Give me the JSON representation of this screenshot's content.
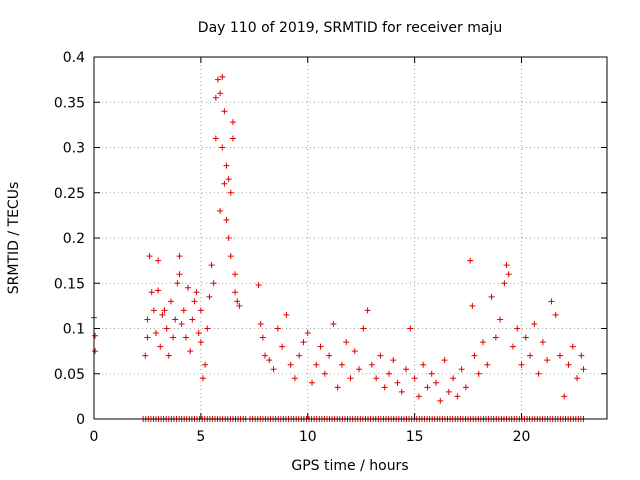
{
  "chart_data": {
    "type": "scatter",
    "title": "Day 110 of 2019, SRMTID for receiver maju",
    "xlabel": "GPS time / hours",
    "ylabel": "SRMTID / TECUs",
    "xlim": [
      0,
      24
    ],
    "ylim": [
      0,
      0.4
    ],
    "xticks": [
      0,
      5,
      10,
      15,
      20
    ],
    "xtick_labels": [
      "0",
      "5",
      "10",
      "15",
      "20"
    ],
    "yticks": [
      0,
      0.05,
      0.1,
      0.15,
      0.2,
      0.25,
      0.3,
      0.35,
      0.4
    ],
    "ytick_labels": [
      "0",
      "0.05",
      "0.1",
      "0.15",
      "0.2",
      "0.25",
      "0.3",
      "0.35",
      "0.4"
    ],
    "grid": true,
    "marker": "plus",
    "color": "#e00000",
    "series": [
      {
        "name": "SRMTID",
        "points": [
          [
            0.0,
            0.112
          ],
          [
            0.05,
            0.092
          ],
          [
            0.05,
            0.075
          ],
          [
            2.4,
            0.07
          ],
          [
            2.5,
            0.09
          ],
          [
            2.5,
            0.11
          ],
          [
            2.6,
            0.18
          ],
          [
            2.7,
            0.14
          ],
          [
            2.8,
            0.12
          ],
          [
            2.9,
            0.095
          ],
          [
            3.0,
            0.175
          ],
          [
            3.0,
            0.142
          ],
          [
            3.1,
            0.08
          ],
          [
            3.2,
            0.115
          ],
          [
            3.3,
            0.12
          ],
          [
            3.4,
            0.1
          ],
          [
            3.5,
            0.07
          ],
          [
            3.6,
            0.13
          ],
          [
            3.7,
            0.09
          ],
          [
            3.8,
            0.11
          ],
          [
            3.9,
            0.15
          ],
          [
            4.0,
            0.16
          ],
          [
            4.0,
            0.18
          ],
          [
            4.1,
            0.105
          ],
          [
            4.2,
            0.12
          ],
          [
            4.3,
            0.09
          ],
          [
            4.4,
            0.145
          ],
          [
            4.5,
            0.075
          ],
          [
            4.6,
            0.11
          ],
          [
            4.7,
            0.13
          ],
          [
            4.8,
            0.14
          ],
          [
            4.9,
            0.095
          ],
          [
            5.0,
            0.085
          ],
          [
            5.0,
            0.12
          ],
          [
            5.1,
            0.045
          ],
          [
            5.2,
            0.06
          ],
          [
            5.3,
            0.1
          ],
          [
            5.4,
            0.135
          ],
          [
            5.5,
            0.17
          ],
          [
            5.6,
            0.15
          ],
          [
            5.7,
            0.31
          ],
          [
            5.7,
            0.355
          ],
          [
            5.8,
            0.375
          ],
          [
            5.9,
            0.36
          ],
          [
            5.9,
            0.23
          ],
          [
            6.0,
            0.3
          ],
          [
            6.0,
            0.378
          ],
          [
            6.1,
            0.34
          ],
          [
            6.1,
            0.26
          ],
          [
            6.2,
            0.28
          ],
          [
            6.2,
            0.22
          ],
          [
            6.3,
            0.265
          ],
          [
            6.3,
            0.2
          ],
          [
            6.4,
            0.25
          ],
          [
            6.4,
            0.18
          ],
          [
            6.5,
            0.31
          ],
          [
            6.5,
            0.328
          ],
          [
            6.6,
            0.16
          ],
          [
            6.6,
            0.14
          ],
          [
            6.7,
            0.13
          ],
          [
            6.8,
            0.125
          ],
          [
            7.7,
            0.148
          ],
          [
            7.8,
            0.105
          ],
          [
            7.9,
            0.09
          ],
          [
            8.0,
            0.07
          ],
          [
            8.2,
            0.065
          ],
          [
            8.4,
            0.055
          ],
          [
            8.6,
            0.1
          ],
          [
            8.8,
            0.08
          ],
          [
            9.0,
            0.115
          ],
          [
            9.2,
            0.06
          ],
          [
            9.4,
            0.045
          ],
          [
            9.6,
            0.07
          ],
          [
            9.8,
            0.085
          ],
          [
            10.0,
            0.095
          ],
          [
            10.2,
            0.04
          ],
          [
            10.4,
            0.06
          ],
          [
            10.6,
            0.08
          ],
          [
            10.8,
            0.05
          ],
          [
            11.0,
            0.07
          ],
          [
            11.2,
            0.105
          ],
          [
            11.4,
            0.035
          ],
          [
            11.6,
            0.06
          ],
          [
            11.8,
            0.085
          ],
          [
            12.0,
            0.045
          ],
          [
            12.2,
            0.075
          ],
          [
            12.4,
            0.055
          ],
          [
            12.6,
            0.1
          ],
          [
            12.8,
            0.12
          ],
          [
            13.0,
            0.06
          ],
          [
            13.2,
            0.045
          ],
          [
            13.4,
            0.07
          ],
          [
            13.6,
            0.035
          ],
          [
            13.8,
            0.05
          ],
          [
            14.0,
            0.065
          ],
          [
            14.2,
            0.04
          ],
          [
            14.4,
            0.03
          ],
          [
            14.6,
            0.055
          ],
          [
            14.8,
            0.1
          ],
          [
            15.0,
            0.045
          ],
          [
            15.2,
            0.025
          ],
          [
            15.4,
            0.06
          ],
          [
            15.6,
            0.035
          ],
          [
            15.8,
            0.05
          ],
          [
            16.0,
            0.04
          ],
          [
            16.2,
            0.02
          ],
          [
            16.4,
            0.065
          ],
          [
            16.6,
            0.03
          ],
          [
            16.8,
            0.045
          ],
          [
            17.0,
            0.025
          ],
          [
            17.2,
            0.055
          ],
          [
            17.4,
            0.035
          ],
          [
            17.6,
            0.175
          ],
          [
            17.7,
            0.125
          ],
          [
            17.8,
            0.07
          ],
          [
            18.0,
            0.05
          ],
          [
            18.2,
            0.085
          ],
          [
            18.4,
            0.06
          ],
          [
            18.6,
            0.135
          ],
          [
            18.8,
            0.09
          ],
          [
            19.0,
            0.11
          ],
          [
            19.2,
            0.15
          ],
          [
            19.3,
            0.17
          ],
          [
            19.4,
            0.16
          ],
          [
            19.6,
            0.08
          ],
          [
            19.8,
            0.1
          ],
          [
            20.0,
            0.06
          ],
          [
            20.2,
            0.09
          ],
          [
            20.4,
            0.07
          ],
          [
            20.6,
            0.105
          ],
          [
            20.8,
            0.05
          ],
          [
            21.0,
            0.085
          ],
          [
            21.2,
            0.065
          ],
          [
            21.4,
            0.13
          ],
          [
            21.6,
            0.115
          ],
          [
            21.8,
            0.07
          ],
          [
            22.0,
            0.025
          ],
          [
            22.2,
            0.06
          ],
          [
            22.4,
            0.08
          ],
          [
            22.6,
            0.045
          ],
          [
            22.8,
            0.07
          ],
          [
            22.9,
            0.055
          ]
        ]
      }
    ],
    "zero_value_ranges": [
      [
        2.3,
        7.2
      ],
      [
        7.3,
        23.0
      ]
    ]
  }
}
